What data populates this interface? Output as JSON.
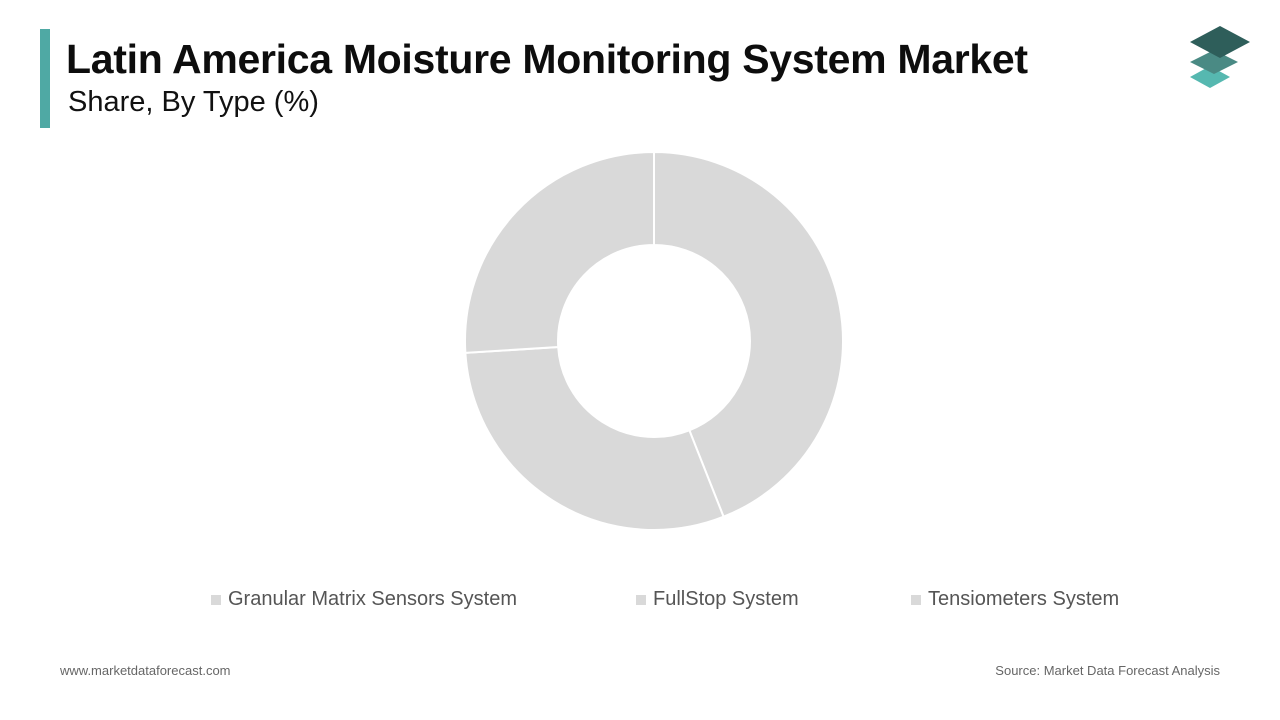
{
  "header": {
    "title": "Latin America Moisture Monitoring System Market",
    "subtitle": "Share, By Type (%)"
  },
  "logo": {
    "icon": "stacked-layers-icon",
    "colors": [
      "#2e5e5a",
      "#4a8a84",
      "#56b8b0"
    ]
  },
  "colors": {
    "accent": "#4fa9a4",
    "slice": "#d9d9d9",
    "slice_border": "#ffffff",
    "legend_swatch": "#d9d9d9"
  },
  "chart_data": {
    "type": "pie",
    "donut": true,
    "categories": [
      "Granular Matrix Sensors System",
      "FullStop System",
      "Tensiometers System"
    ],
    "values": [
      44,
      30,
      26
    ],
    "legend_position": "bottom"
  },
  "footer": {
    "website": "www.marketdataforecast.com",
    "source": "Source: Market Data Forecast Analysis"
  }
}
